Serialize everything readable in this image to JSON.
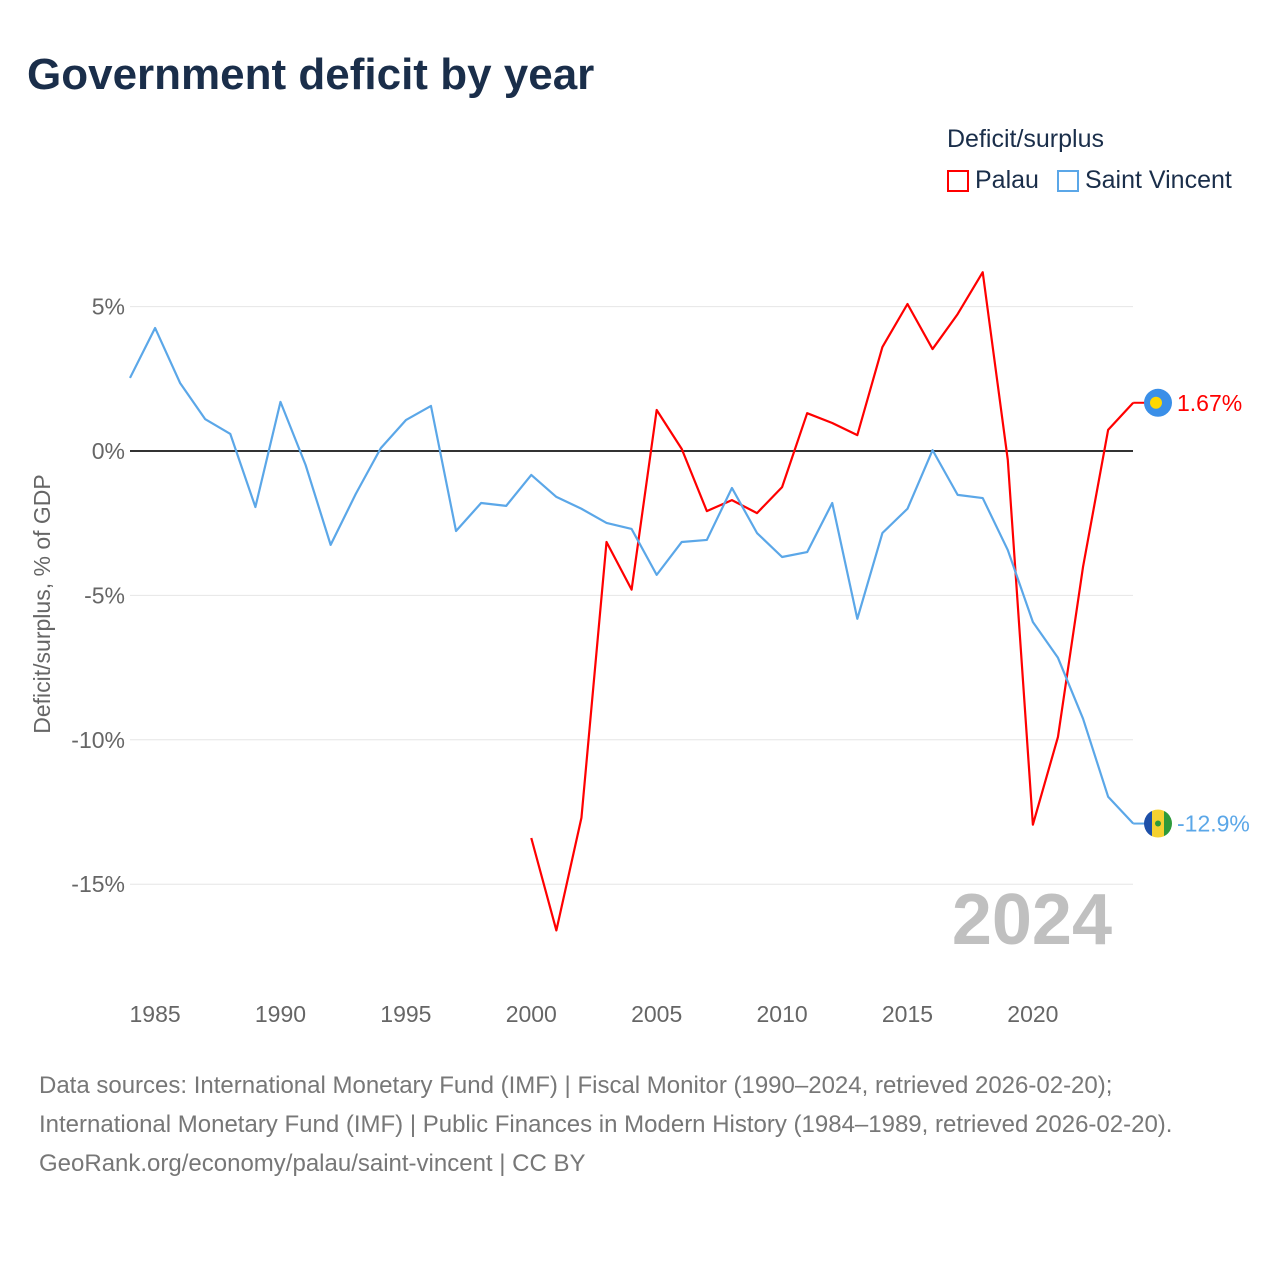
{
  "title": "Government deficit by year",
  "legend": {
    "title": "Deficit/surplus",
    "items": [
      {
        "name": "Palau",
        "color": "#ff0000"
      },
      {
        "name": "Saint Vincent",
        "color": "#5ba7e8"
      }
    ]
  },
  "chart_data": {
    "type": "line",
    "title": "Government deficit by year",
    "ylabel": "Deficit/surplus, % of GDP",
    "xlabel": "",
    "xlim": [
      1984,
      2024
    ],
    "ylim": [
      -18,
      7
    ],
    "xticks": [
      1985,
      1990,
      1995,
      2000,
      2005,
      2010,
      2015,
      2020
    ],
    "xtick_labels": [
      "1985",
      "1990",
      "1995",
      "2000",
      "2005",
      "2010",
      "2015",
      "2020"
    ],
    "yticks": [
      5,
      0,
      -5,
      -10,
      -15
    ],
    "ytick_labels": [
      "5%",
      "0%",
      "-5%",
      "-10%",
      "-15%"
    ],
    "grid": true,
    "year_label": "2024",
    "series": [
      {
        "name": "Palau",
        "color": "#ff0000",
        "end_label": "1.67%",
        "x": [
          2000,
          2001,
          2002,
          2003,
          2004,
          2005,
          2006,
          2007,
          2008,
          2009,
          2010,
          2011,
          2012,
          2013,
          2014,
          2015,
          2016,
          2017,
          2018,
          2019,
          2020,
          2021,
          2022,
          2023,
          2024
        ],
        "values": [
          -13.4,
          -16.6,
          -12.7,
          -3.15,
          -4.8,
          1.42,
          0.07,
          -2.08,
          -1.7,
          -2.15,
          -1.25,
          1.31,
          0.97,
          0.55,
          3.6,
          5.09,
          3.53,
          4.74,
          6.19,
          -0.31,
          -12.94,
          -9.9,
          -4.01,
          0.73,
          1.67
        ]
      },
      {
        "name": "Saint Vincent",
        "color": "#5ba7e8",
        "end_label": "-12.9%",
        "x": [
          1984,
          1985,
          1986,
          1987,
          1988,
          1989,
          1990,
          1991,
          1992,
          1993,
          1994,
          1995,
          1996,
          1997,
          1998,
          1999,
          2000,
          2001,
          2002,
          2003,
          2004,
          2005,
          2006,
          2007,
          2008,
          2009,
          2010,
          2011,
          2012,
          2013,
          2014,
          2015,
          2016,
          2017,
          2018,
          2019,
          2020,
          2021,
          2022,
          2023,
          2024
        ],
        "values": [
          2.53,
          4.26,
          2.35,
          1.1,
          0.59,
          -1.94,
          1.7,
          -0.48,
          -3.25,
          -1.49,
          0.1,
          1.07,
          1.56,
          -2.77,
          -1.8,
          -1.9,
          -0.83,
          -1.59,
          -2.0,
          -2.49,
          -2.7,
          -4.29,
          -3.15,
          -3.08,
          -1.28,
          -2.84,
          -3.67,
          -3.5,
          -1.8,
          -5.81,
          -2.84,
          -2.0,
          0.03,
          -1.52,
          -1.63,
          -3.43,
          -5.92,
          -7.16,
          -9.27,
          -11.97,
          -12.9
        ]
      }
    ]
  },
  "footer": {
    "sources": "Data sources: International Monetary Fund (IMF) | Fiscal Monitor (1990–2024, retrieved 2026-02-20); International Monetary Fund (IMF) | Public Finances in Modern History (1984–1989, retrieved 2026-02-20).",
    "credit": "GeoRank.org/economy/palau/saint-vincent | CC BY"
  }
}
